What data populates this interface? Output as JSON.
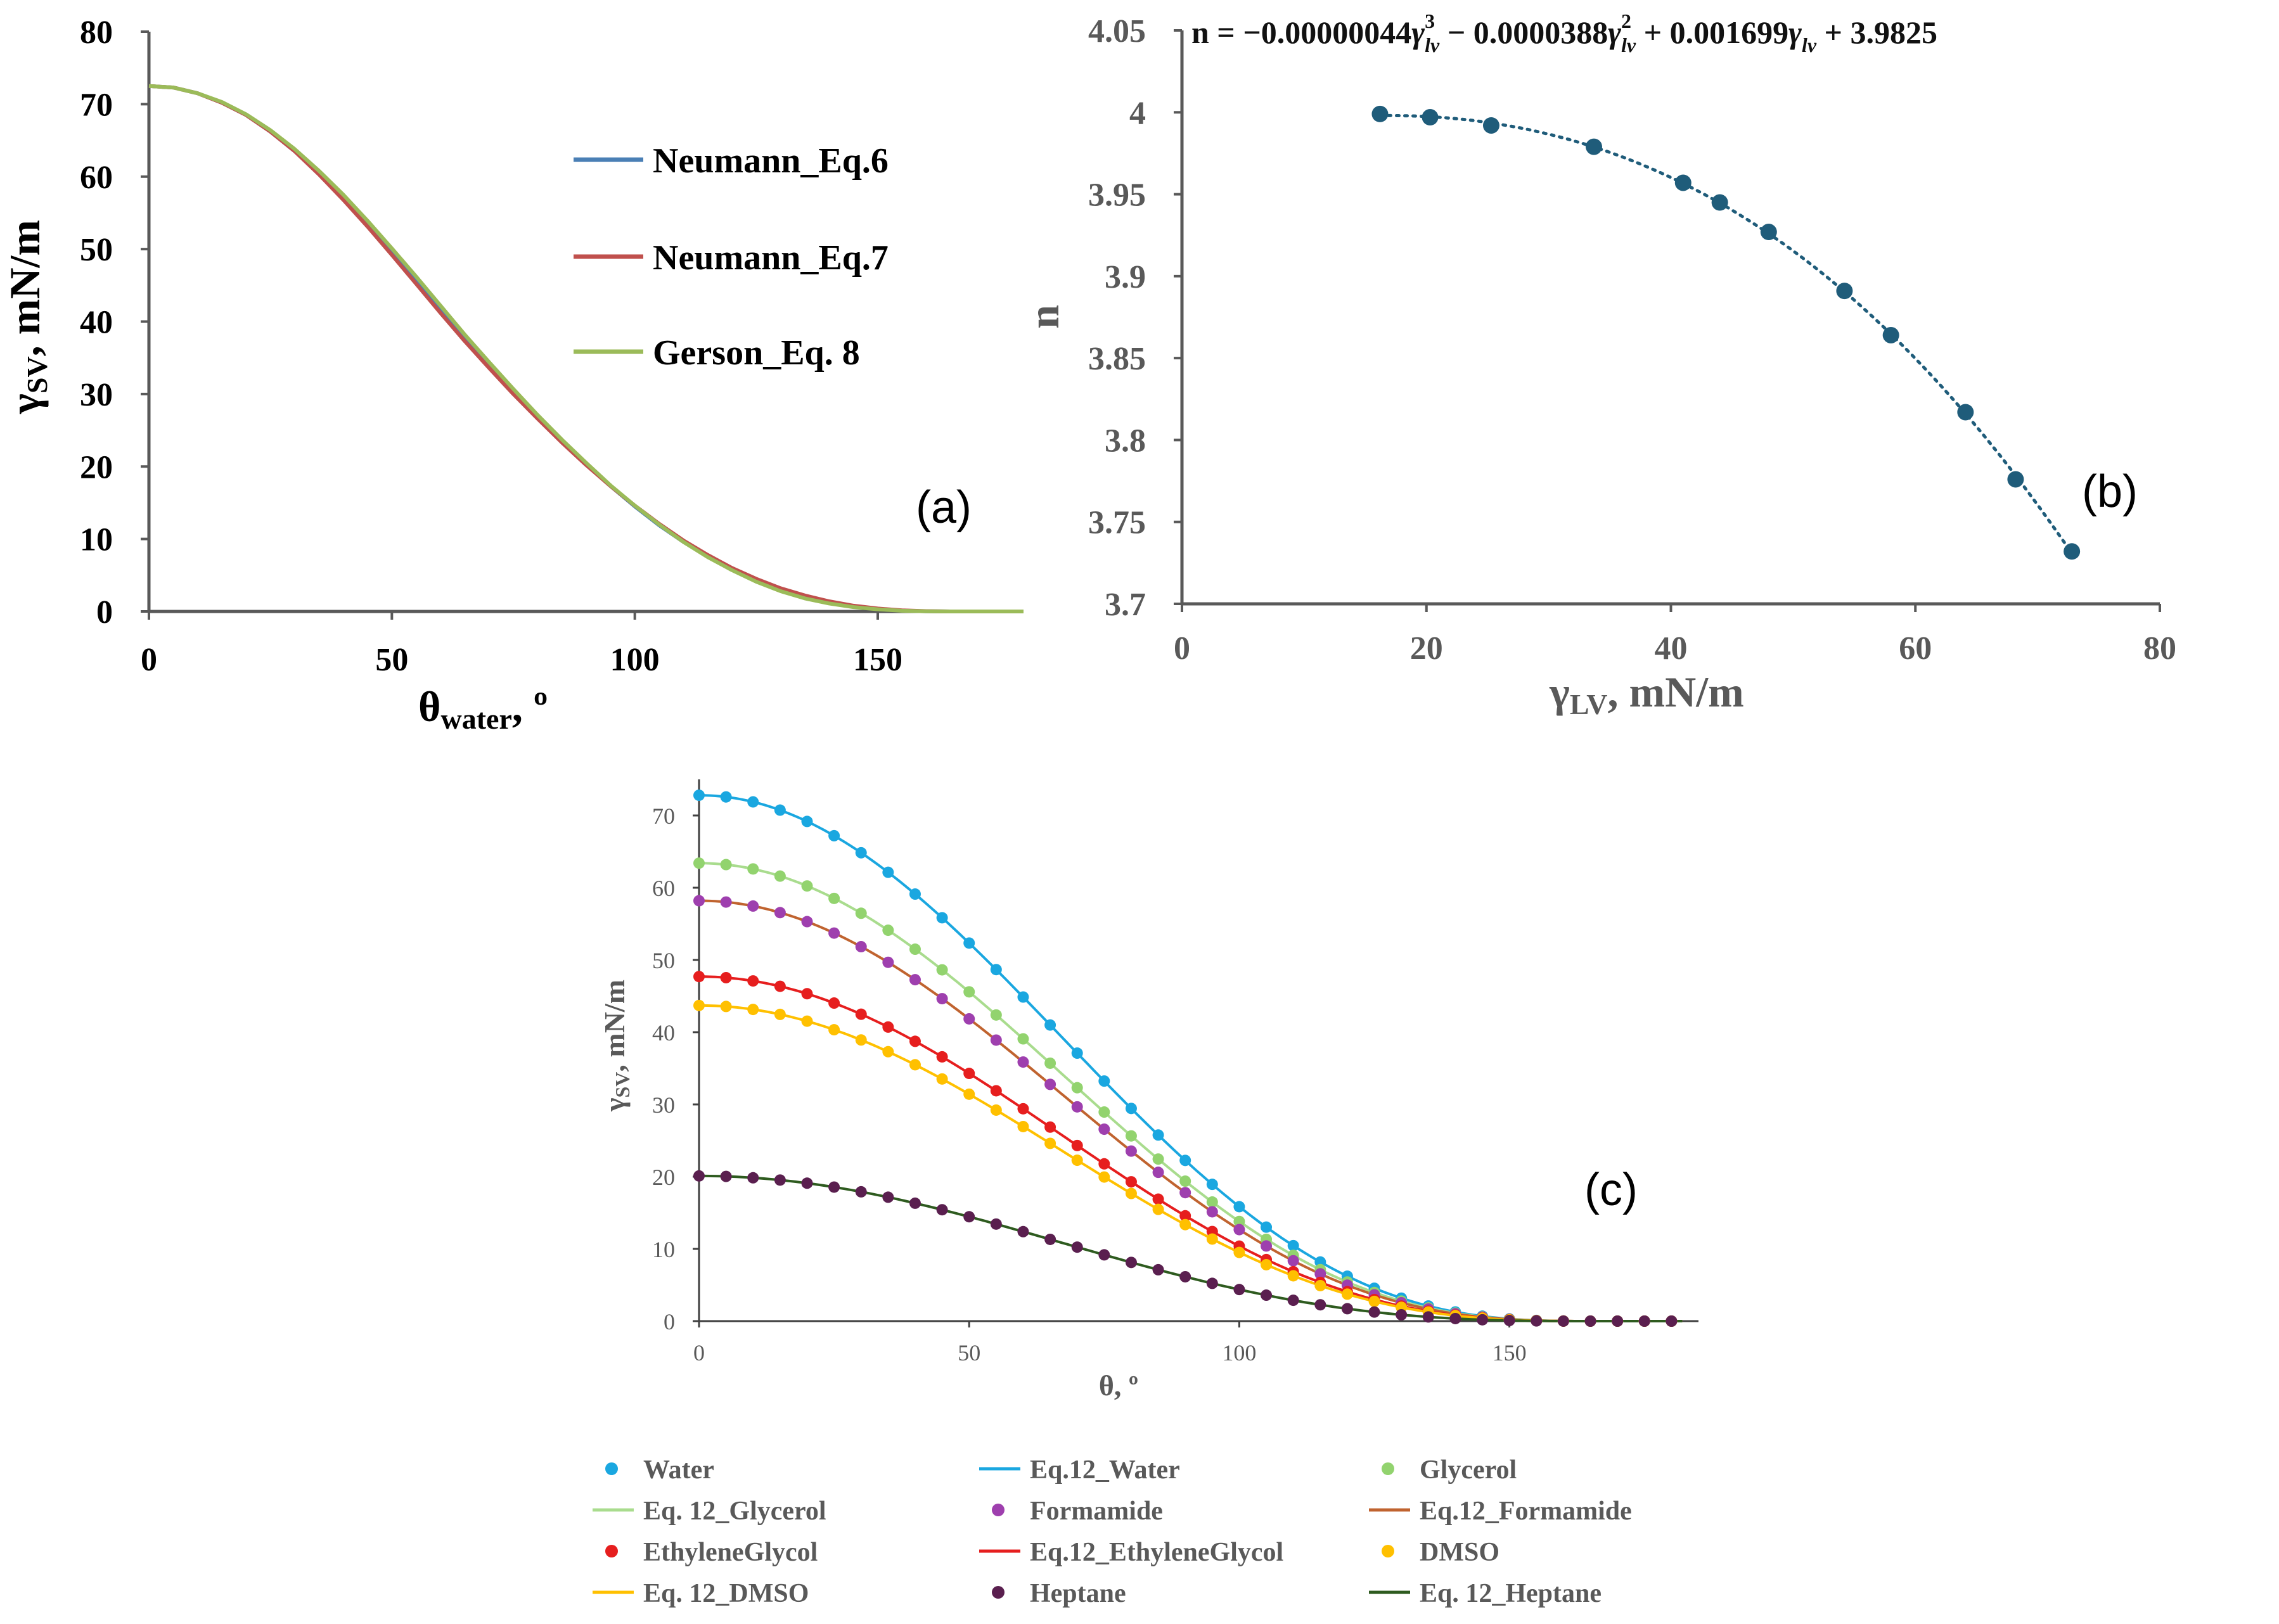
{
  "chart_data": [
    {
      "id": "a",
      "type": "line",
      "panel_label": "(a)",
      "title": "",
      "xlabel_main": "θ",
      "xlabel_sub": "water",
      "xlabel_suffix": ", º",
      "ylabel_main": "γ",
      "ylabel_sub": "SV",
      "ylabel_suffix": ", mN/m",
      "xlim": [
        0,
        180
      ],
      "ylim": [
        0,
        80
      ],
      "xticks": [
        0,
        50,
        100,
        150
      ],
      "yticks": [
        0,
        10,
        20,
        30,
        40,
        50,
        60,
        70,
        80
      ],
      "grid": false,
      "legend_position": "top-right",
      "x": [
        0,
        5,
        10,
        15,
        20,
        25,
        30,
        35,
        40,
        45,
        50,
        55,
        60,
        65,
        70,
        75,
        80,
        85,
        90,
        95,
        100,
        105,
        110,
        115,
        120,
        125,
        130,
        135,
        140,
        145,
        150,
        155,
        160,
        165,
        170,
        175,
        180
      ],
      "series": [
        {
          "name": "Neumann_Eq.6",
          "color": "#4a7fb5",
          "values": [
            72.5,
            72.3,
            71.5,
            70.2,
            68.5,
            66.2,
            63.5,
            60.4,
            57.0,
            53.4,
            49.6,
            45.7,
            41.8,
            37.9,
            34.1,
            30.4,
            26.9,
            23.5,
            20.3,
            17.3,
            14.5,
            11.9,
            9.6,
            7.6,
            5.8,
            4.3,
            3.0,
            2.0,
            1.3,
            0.7,
            0.35,
            0.12,
            0.03,
            0.0,
            0.0,
            0.0,
            0.0
          ]
        },
        {
          "name": "Neumann_Eq.7",
          "color": "#c0504d",
          "values": [
            72.5,
            72.3,
            71.5,
            70.2,
            68.5,
            66.2,
            63.5,
            60.3,
            56.8,
            53.1,
            49.2,
            45.2,
            41.2,
            37.3,
            33.6,
            30.0,
            26.6,
            23.3,
            20.2,
            17.3,
            14.6,
            12.1,
            9.8,
            7.8,
            6.0,
            4.5,
            3.2,
            2.2,
            1.4,
            0.8,
            0.4,
            0.15,
            0.04,
            0.0,
            0.0,
            0.0,
            0.0
          ]
        },
        {
          "name": "Gerson_Eq. 8",
          "color": "#9bbb59",
          "values": [
            72.5,
            72.3,
            71.5,
            70.3,
            68.6,
            66.4,
            63.8,
            60.8,
            57.5,
            53.9,
            50.1,
            46.2,
            42.2,
            38.2,
            34.4,
            30.7,
            27.1,
            23.7,
            20.5,
            17.4,
            14.6,
            12.0,
            9.6,
            7.5,
            5.7,
            4.1,
            2.8,
            1.8,
            1.1,
            0.6,
            0.3,
            0.1,
            0.02,
            0.0,
            0.0,
            0.0,
            0.0
          ]
        }
      ]
    },
    {
      "id": "b",
      "type": "scatter",
      "panel_label": "(b)",
      "equation": "n = −0.00000044γ³lv − 0.0000388γ²lv + 0.001699γlv + 3.9825",
      "eq_prefix": "n = −0.00000044",
      "eq_mid1": " − 0.0000388",
      "eq_mid2": " + 0.001699",
      "eq_suffix": " + 3.9825",
      "eq_gamma": "γ",
      "eq_sub": "lv",
      "eq_sup3": "3",
      "eq_sup2": "2",
      "xlabel_main": "γ",
      "xlabel_sub": "LV",
      "xlabel_suffix": ", mN/m",
      "ylabel": "n",
      "xlim": [
        0,
        80
      ],
      "ylim": [
        3.7,
        4.05
      ],
      "xticks": [
        0,
        20,
        40,
        60,
        80
      ],
      "yticks": [
        3.7,
        3.75,
        3.8,
        3.85,
        3.9,
        3.95,
        4,
        4.05
      ],
      "yticklabels": [
        "3.7",
        "3.75",
        "3.8",
        "3.85",
        "3.9",
        "3.95",
        "4",
        "4.05"
      ],
      "grid": false,
      "trendline": "polynomial (order 3), dotted",
      "color": "#1f5c7a",
      "points": [
        {
          "x": 16.2,
          "y": 3.999
        },
        {
          "x": 20.3,
          "y": 3.997
        },
        {
          "x": 25.3,
          "y": 3.992
        },
        {
          "x": 33.7,
          "y": 3.979
        },
        {
          "x": 41.0,
          "y": 3.957
        },
        {
          "x": 44.0,
          "y": 3.945
        },
        {
          "x": 48.0,
          "y": 3.927
        },
        {
          "x": 54.2,
          "y": 3.891
        },
        {
          "x": 58.0,
          "y": 3.864
        },
        {
          "x": 64.1,
          "y": 3.817
        },
        {
          "x": 68.2,
          "y": 3.776
        },
        {
          "x": 72.8,
          "y": 3.732
        }
      ]
    },
    {
      "id": "c",
      "type": "line",
      "panel_label": "(c)",
      "xlabel": "θ, º",
      "ylabel_main": "γ",
      "ylabel_sub": "SV",
      "ylabel_suffix": ", mN/m",
      "xlim": [
        0,
        185
      ],
      "ylim": [
        0,
        75
      ],
      "xticks": [
        0,
        50,
        100,
        150
      ],
      "yticks": [
        0,
        10,
        20,
        30,
        40,
        50,
        60,
        70
      ],
      "grid": false,
      "legend_position": "bottom",
      "marker_x": [
        0,
        5,
        10,
        15,
        20,
        25,
        30,
        35,
        40,
        45,
        50,
        55,
        60,
        65,
        70,
        75,
        80,
        85,
        90,
        95,
        100,
        105,
        110,
        115,
        120,
        125,
        130,
        135,
        140,
        145,
        150,
        155,
        160,
        165,
        170,
        175,
        180
      ],
      "liquids": [
        {
          "name": "Water",
          "fit_name": "Eq.12_Water",
          "gamma_lv": 72.8,
          "marker_color": "#1aa7e0",
          "line_color": "#1aa7e0"
        },
        {
          "name": "Glycerol",
          "fit_name": "Eq. 12_Glycerol",
          "gamma_lv": 63.4,
          "marker_color": "#92d36e",
          "line_color": "#a9dc8e"
        },
        {
          "name": "Formamide",
          "fit_name": "Eq.12_Formamide",
          "gamma_lv": 58.2,
          "marker_color": "#9e3fae",
          "line_color": "#c0632f"
        },
        {
          "name": "EthyleneGlycol",
          "fit_name": "Eq.12_EthyleneGlycol",
          "gamma_lv": 47.7,
          "marker_color": "#e61e1e",
          "line_color": "#e61e1e"
        },
        {
          "name": "DMSO",
          "fit_name": "Eq. 12_DMSO",
          "gamma_lv": 43.7,
          "marker_color": "#ffc000",
          "line_color": "#ffc000"
        },
        {
          "name": "Heptane",
          "fit_name": "Eq. 12_Heptane",
          "gamma_lv": 20.1,
          "marker_color": "#5a1f4f",
          "line_color": "#2e5b1f"
        }
      ]
    }
  ]
}
